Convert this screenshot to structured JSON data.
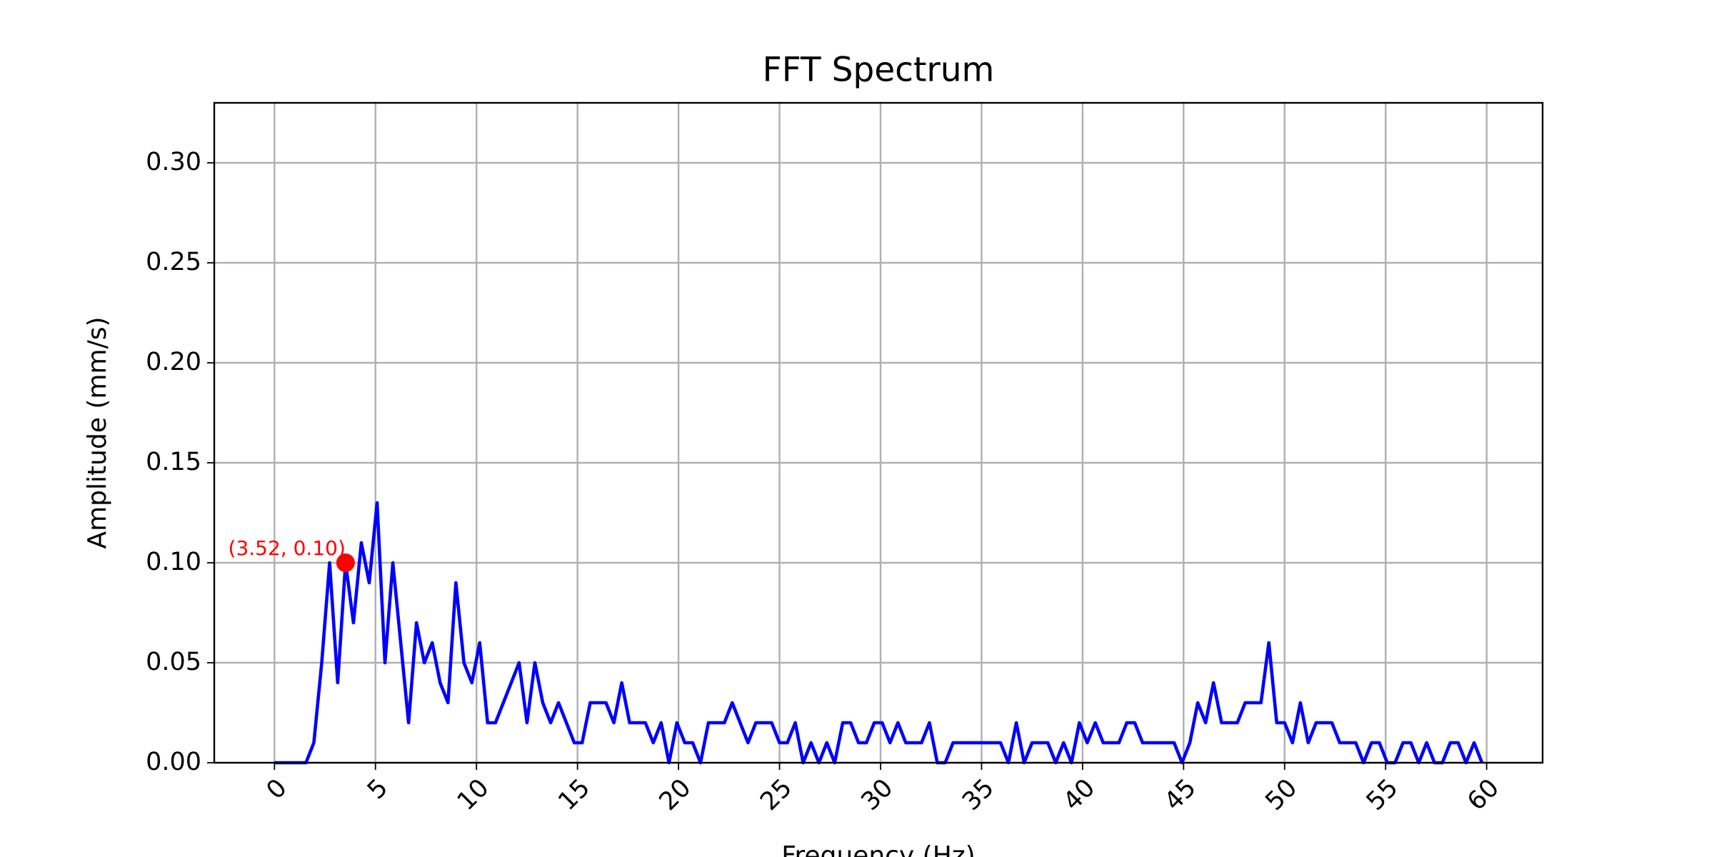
{
  "chart_data": {
    "type": "line",
    "title": "FFT Spectrum",
    "x_label": "Frequency (Hz)",
    "y_label": "Amplitude (mm/s)",
    "x": [
      0,
      0.39,
      0.78,
      1.17,
      1.56,
      1.95,
      2.34,
      2.73,
      3.13,
      3.52,
      3.91,
      4.3,
      4.69,
      5.08,
      5.47,
      5.86,
      6.25,
      6.64,
      7.03,
      7.42,
      7.81,
      8.2,
      8.59,
      8.98,
      9.38,
      9.77,
      10.16,
      10.55,
      10.94,
      11.33,
      11.72,
      12.11,
      12.5,
      12.89,
      13.28,
      13.67,
      14.06,
      14.45,
      14.84,
      15.23,
      15.63,
      16.02,
      16.41,
      16.8,
      17.19,
      17.58,
      17.97,
      18.36,
      18.75,
      19.14,
      19.53,
      19.92,
      20.31,
      20.7,
      21.09,
      21.48,
      21.88,
      22.27,
      22.66,
      23.05,
      23.44,
      23.83,
      24.22,
      24.61,
      25.0,
      25.39,
      25.78,
      26.17,
      26.56,
      26.95,
      27.34,
      27.73,
      28.13,
      28.52,
      28.91,
      29.3,
      29.69,
      30.08,
      30.47,
      30.86,
      31.25,
      31.64,
      32.03,
      32.42,
      32.81,
      33.2,
      33.59,
      33.98,
      34.38,
      34.77,
      35.16,
      35.55,
      35.94,
      36.33,
      36.72,
      37.11,
      37.5,
      37.89,
      38.28,
      38.67,
      39.06,
      39.45,
      39.84,
      40.23,
      40.63,
      41.02,
      41.41,
      41.8,
      42.19,
      42.58,
      42.97,
      43.36,
      43.75,
      44.14,
      44.53,
      44.92,
      45.31,
      45.7,
      46.09,
      46.48,
      46.88,
      47.27,
      47.66,
      48.05,
      48.44,
      48.83,
      49.22,
      49.61,
      50.0,
      50.39,
      50.78,
      51.17,
      51.56,
      51.95,
      52.34,
      52.73,
      53.13,
      53.52,
      53.91,
      54.3,
      54.69,
      55.08,
      55.47,
      55.86,
      56.25,
      56.64,
      57.03,
      57.42,
      57.81,
      58.2,
      58.59,
      58.98,
      59.38,
      59.77
    ],
    "series": [
      {
        "color": "#0000ff",
        "values": [
          0,
          0,
          0,
          0,
          0,
          0.01,
          0.05,
          0.1,
          0.04,
          0.1,
          0.07,
          0.11,
          0.09,
          0.13,
          0.05,
          0.1,
          0.06,
          0.02,
          0.07,
          0.05,
          0.06,
          0.04,
          0.03,
          0.09,
          0.05,
          0.04,
          0.06,
          0.02,
          0.02,
          0.03,
          0.04,
          0.05,
          0.02,
          0.05,
          0.03,
          0.02,
          0.03,
          0.02,
          0.01,
          0.01,
          0.03,
          0.03,
          0.03,
          0.02,
          0.04,
          0.02,
          0.02,
          0.02,
          0.01,
          0.02,
          0,
          0.02,
          0.01,
          0.01,
          0,
          0.02,
          0.02,
          0.02,
          0.03,
          0.02,
          0.01,
          0.02,
          0.02,
          0.02,
          0.01,
          0.01,
          0.02,
          0,
          0.01,
          0,
          0.01,
          0,
          0.02,
          0.02,
          0.01,
          0.01,
          0.02,
          0.02,
          0.01,
          0.02,
          0.01,
          0.01,
          0.01,
          0.02,
          0,
          0,
          0.01,
          0.01,
          0.01,
          0.01,
          0.01,
          0.01,
          0.01,
          0,
          0.02,
          0,
          0.01,
          0.01,
          0.01,
          0,
          0.01,
          0,
          0.02,
          0.01,
          0.02,
          0.01,
          0.01,
          0.01,
          0.02,
          0.02,
          0.01,
          0.01,
          0.01,
          0.01,
          0.01,
          0,
          0.01,
          0.03,
          0.02,
          0.04,
          0.02,
          0.02,
          0.02,
          0.03,
          0.03,
          0.03,
          0.06,
          0.02,
          0.02,
          0.01,
          0.03,
          0.01,
          0.02,
          0.02,
          0.02,
          0.01,
          0.01,
          0.01,
          0,
          0.01,
          0.01,
          0,
          0,
          0.01,
          0.01,
          0,
          0.01,
          0,
          0,
          0.01,
          0.01,
          0,
          0.01,
          0
        ]
      }
    ],
    "annotations": [
      {
        "text": "(3.52, 0.10)",
        "x": 3.52,
        "y": 0.1,
        "color": "#ff0000"
      }
    ],
    "xlim": [
      -2.98,
      62.77
    ],
    "ylim": [
      0,
      0.33
    ],
    "xticks": [
      0,
      5,
      10,
      15,
      20,
      25,
      30,
      35,
      40,
      45,
      50,
      55,
      60
    ],
    "yticks": [
      {
        "value": 0,
        "label": "0.00"
      },
      {
        "value": 0.05,
        "label": "0.05"
      },
      {
        "value": 0.1,
        "label": "0.10"
      },
      {
        "value": 0.15,
        "label": "0.15"
      },
      {
        "value": 0.2,
        "label": "0.20"
      },
      {
        "value": 0.25,
        "label": "0.25"
      },
      {
        "value": 0.3,
        "label": "0.30"
      }
    ],
    "grid": true
  }
}
